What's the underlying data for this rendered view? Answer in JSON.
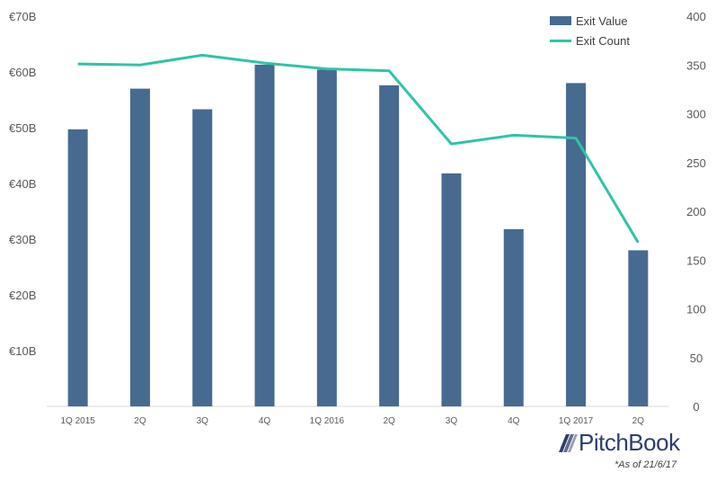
{
  "chart_data": {
    "type": "bar",
    "categories": [
      "1Q 2015",
      "2Q",
      "3Q",
      "4Q",
      "1Q 2016",
      "2Q",
      "3Q",
      "4Q",
      "1Q 2017",
      "2Q"
    ],
    "series": [
      {
        "name": "Exit Value",
        "type": "bar",
        "axis": "left",
        "color": "#476a91",
        "values": [
          49.7,
          57.0,
          53.3,
          61.3,
          60.4,
          57.6,
          41.8,
          31.8,
          58.0,
          28.0
        ]
      },
      {
        "name": "Exit Count",
        "type": "line",
        "axis": "right",
        "color": "#2ec4a8",
        "values": [
          351,
          350,
          360,
          352,
          346,
          344,
          269,
          278,
          275,
          168
        ]
      }
    ],
    "left_axis": {
      "min": 0,
      "max": 70,
      "step": 10,
      "ticks": [
        "",
        "€10B",
        "€20B",
        "€30B",
        "€40B",
        "€50B",
        "€60B",
        "€70B"
      ]
    },
    "right_axis": {
      "min": 0,
      "max": 400,
      "step": 50,
      "ticks": [
        "0",
        "50",
        "100",
        "150",
        "200",
        "250",
        "300",
        "350",
        "400"
      ]
    },
    "legend_position": "top-right",
    "grid": false
  },
  "legend": {
    "exit_value": "Exit Value",
    "exit_count": "Exit Count"
  },
  "logo": {
    "text": "PitchBook"
  },
  "footnote": "*As of 21/6/17"
}
